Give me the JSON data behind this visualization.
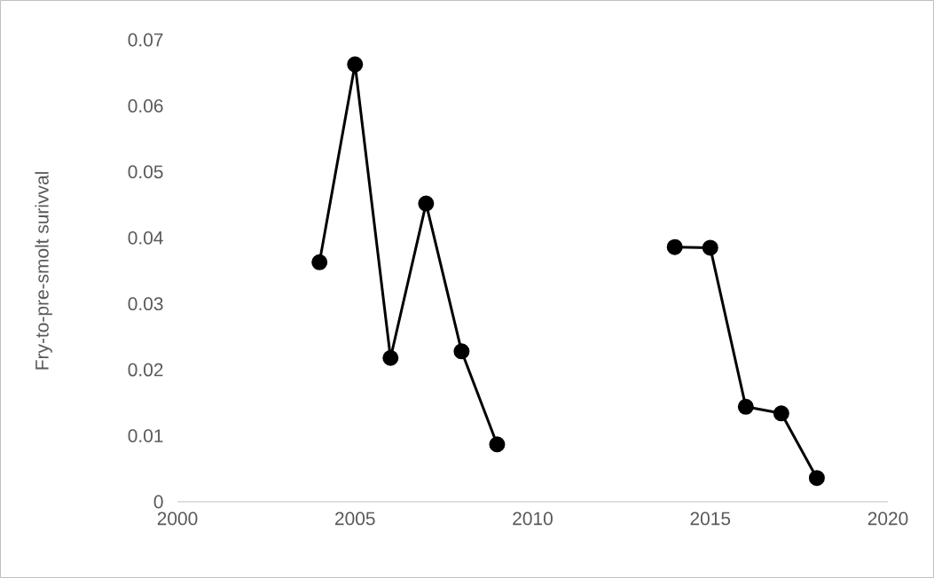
{
  "chart_data": {
    "type": "line",
    "ylabel": "Fry-to-pre-smolt surivval",
    "x": [
      2004,
      2005,
      2006,
      2007,
      2008,
      2009,
      2010,
      2011,
      2012,
      2013,
      2014,
      2015,
      2016,
      2017,
      2018
    ],
    "series": [
      {
        "color": "#000000",
        "values": [
          0.0363,
          0.0663,
          0.0218,
          0.0452,
          0.0228,
          0.0087,
          null,
          null,
          null,
          null,
          0.0386,
          0.0385,
          0.0144,
          0.0134,
          0.0036
        ]
      }
    ],
    "xlim": [
      2000,
      2020
    ],
    "xticks": [
      2000,
      2005,
      2010,
      2015,
      2020
    ],
    "ylim": [
      0,
      0.07
    ],
    "yticks": [
      0,
      0.01,
      0.02,
      0.03,
      0.04,
      0.05,
      0.06,
      0.07
    ],
    "grid": false,
    "marker": "circle",
    "line_style": "solid"
  }
}
